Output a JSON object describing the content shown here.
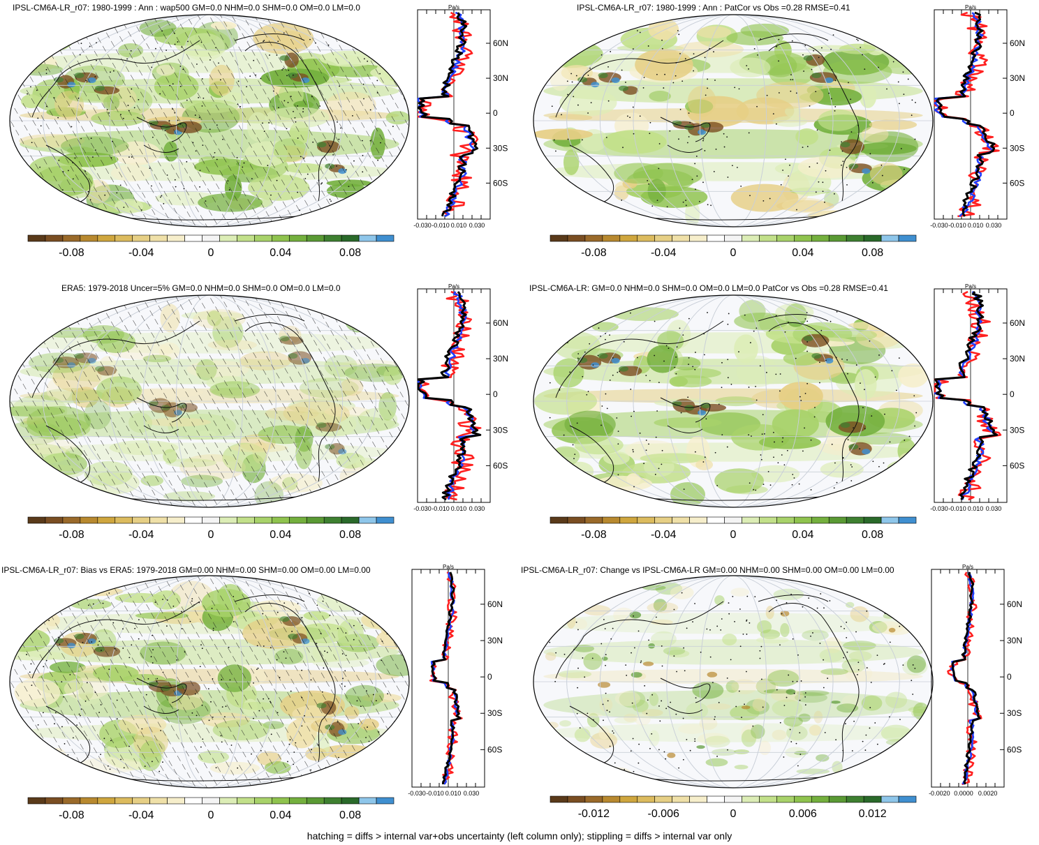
{
  "chart_data": [
    {
      "type": "map",
      "title": "IPSL-CM6A-LR_r07: 1980-1999 : Ann : wap500 GM=0.0 NHM=0.0 SHM=0.0 OM=0.0 LM=0.0",
      "colorbar": {
        "ticks": [
          "-0.08",
          "-0.04",
          "0",
          "0.04",
          "0.08"
        ]
      },
      "profile": {
        "unit": "Pa/s",
        "x_ticks": [
          "-0.030",
          "-0.010",
          "0.010",
          "0.030"
        ],
        "lat_ticks": [
          "60N",
          "30N",
          "0",
          "30S",
          "60S"
        ]
      }
    },
    {
      "type": "map",
      "title": "IPSL-CM6A-LR_r07: 1980-1999 : Ann : PatCor vs Obs =0.28 RMSE=0.41",
      "colorbar": {
        "ticks": [
          "-0.08",
          "-0.04",
          "0",
          "0.04",
          "0.08"
        ]
      },
      "profile": {
        "unit": "Pa/s",
        "x_ticks": [
          "-0.030",
          "-0.010",
          "0.010",
          "0.030"
        ],
        "lat_ticks": [
          "60N",
          "30N",
          "0",
          "30S",
          "60S"
        ]
      }
    },
    {
      "type": "map",
      "title": "ERA5: 1979-2018 Uncer=5% GM=0.0 NHM=0.0 SHM=0.0 OM=0.0 LM=0.0",
      "colorbar": {
        "ticks": [
          "-0.08",
          "-0.04",
          "0",
          "0.04",
          "0.08"
        ]
      },
      "profile": {
        "unit": "Pa/s",
        "x_ticks": [
          "-0.030",
          "-0.010",
          "0.010",
          "0.030"
        ],
        "lat_ticks": [
          "60N",
          "30N",
          "0",
          "30S",
          "60S"
        ]
      }
    },
    {
      "type": "map",
      "title": "IPSL-CM6A-LR: GM=0.0 NHM=0.0 SHM=0.0 OM=0.0 LM=0.0 PatCor vs Obs =0.28 RMSE=0.41",
      "colorbar": {
        "ticks": [
          "-0.08",
          "-0.04",
          "0",
          "0.04",
          "0.08"
        ]
      },
      "profile": {
        "unit": "Pa/s",
        "x_ticks": [
          "-0.030",
          "-0.010",
          "0.010",
          "0.030"
        ],
        "lat_ticks": [
          "60N",
          "30N",
          "0",
          "30S",
          "60S"
        ]
      }
    },
    {
      "type": "map",
      "title": "IPSL-CM6A-LR_r07: Bias vs ERA5: 1979-2018 GM=0.00 NHM=0.00 SHM=0.00 OM=0.00 LM=0.00",
      "colorbar": {
        "ticks": [
          "-0.08",
          "-0.04",
          "0",
          "0.04",
          "0.08"
        ]
      },
      "profile": {
        "unit": "Pa/s",
        "x_ticks": [
          "-0.030",
          "-0.010",
          "0.010",
          "0.030"
        ],
        "lat_ticks": [
          "60N",
          "30N",
          "0",
          "30S",
          "60S"
        ]
      }
    },
    {
      "type": "map",
      "title": "IPSL-CM6A-LR_r07: Change vs IPSL-CM6A-LR GM=0.00 NHM=0.00 SHM=0.00 OM=0.00 LM=0.00",
      "colorbar": {
        "ticks": [
          "-0.012",
          "-0.006",
          "0",
          "0.006",
          "0.012"
        ]
      },
      "profile": {
        "unit": "Pa/s",
        "x_ticks": [
          "-0.0020",
          "0.0000",
          "0.0020"
        ],
        "lat_ticks": [
          "60N",
          "30N",
          "0",
          "30S",
          "60S"
        ]
      }
    }
  ],
  "colors": {
    "scale": [
      "#5a3a1a",
      "#7a4e22",
      "#9a6a2a",
      "#b8892f",
      "#cfa63e",
      "#dcbb5e",
      "#e6cf85",
      "#efe0a8",
      "#f6eecb",
      "#ffffff",
      "#f4f4f4",
      "#dcedb6",
      "#c2e08a",
      "#a8d26a",
      "#8fc34e",
      "#74b03e",
      "#5a9a34",
      "#3e8030",
      "#2a6a2a",
      "#8ec6ea",
      "#3f8fd0"
    ],
    "profile_red": "#ff1f1f",
    "profile_blue": "#1f3fff",
    "profile_black": "#000000"
  },
  "footer": "hatching = diffs > internal var+obs uncertainty (left column only); stippling = diffs > internal var only"
}
